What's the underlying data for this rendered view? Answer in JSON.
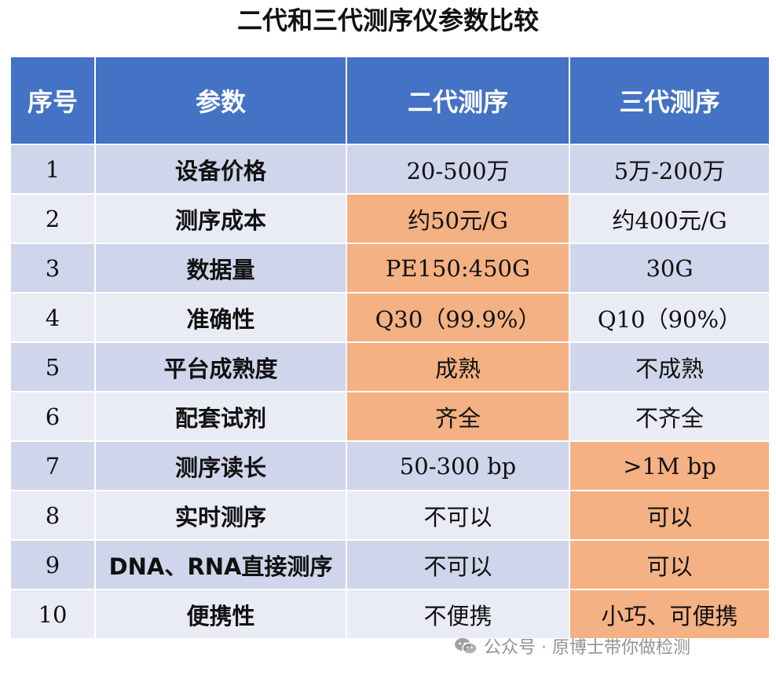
{
  "title": "二代和三代测序仪参数比较",
  "headers": [
    "序号",
    "参数",
    "二代测序",
    "三代测序"
  ],
  "rows": [
    {
      "no": "1",
      "param": "设备价格",
      "gen2": "20-500万",
      "gen3": "5万-200万"
    },
    {
      "no": "2",
      "param": "测序成本",
      "gen2": "约50元/G",
      "gen3": "约400元/G"
    },
    {
      "no": "3",
      "param": "数据量",
      "gen2": "PE150:450G",
      "gen3": "30G"
    },
    {
      "no": "4",
      "param": "准确性",
      "gen2": "Q30（99.9%）",
      "gen3": "Q10（90%）"
    },
    {
      "no": "5",
      "param": "平台成熟度",
      "gen2": "成熟",
      "gen3": "不成熟"
    },
    {
      "no": "6",
      "param": "配套试剂",
      "gen2": "齐全",
      "gen3": "不齐全"
    },
    {
      "no": "7",
      "param": "测序读长",
      "gen2": "50-300 bp",
      "gen3": ">1M bp"
    },
    {
      "no": "8",
      "param": "实时测序",
      "gen2": "不可以",
      "gen3": "可以"
    },
    {
      "no": "9",
      "param": "DNA、RNA直接测序",
      "gen2": "不可以",
      "gen3": "可以"
    },
    {
      "no": "10",
      "param": "便携性",
      "gen2": "不便携",
      "gen3": "小巧、可便携"
    }
  ],
  "watermark": "公众号 · 原博士带你做检测",
  "colors": {
    "header": "#4472c4",
    "row_odd": "#cfd5ea",
    "row_even": "#e9ebf5",
    "highlight": "#f4b183"
  },
  "icons": {
    "watermark": "wechat-icon"
  }
}
